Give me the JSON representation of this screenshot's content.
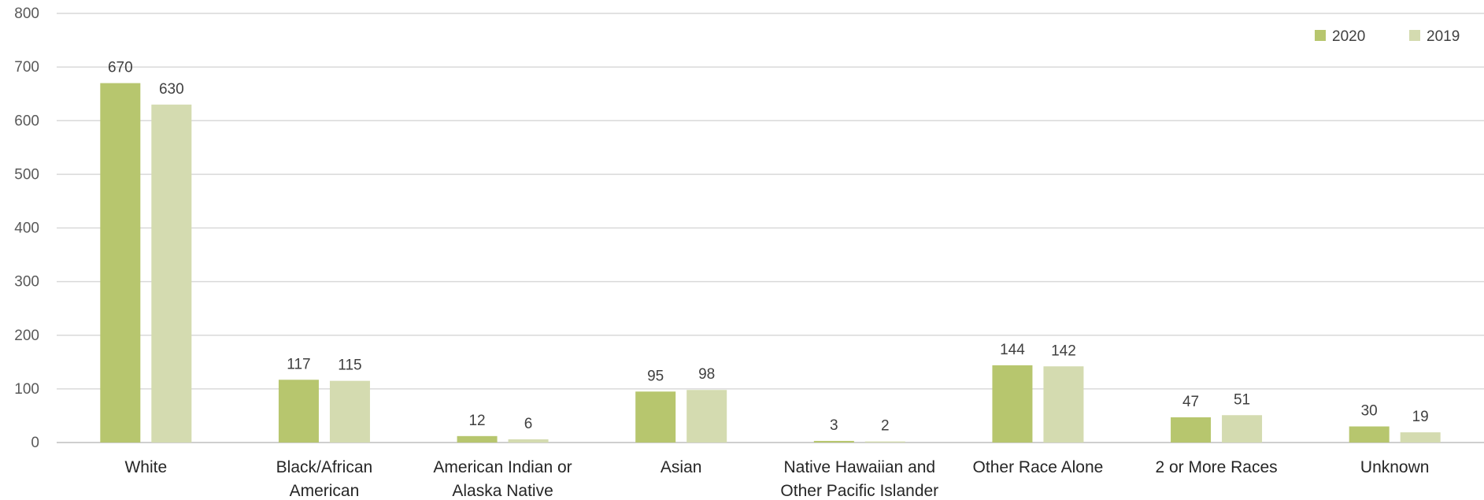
{
  "chart_data": {
    "type": "bar",
    "title": "",
    "xlabel": "",
    "ylabel": "",
    "categories": [
      [
        "White"
      ],
      [
        "Black/African",
        "American"
      ],
      [
        "American Indian or",
        "Alaska Native"
      ],
      [
        "Asian"
      ],
      [
        "Native Hawaiian and",
        "Other Pacific Islander"
      ],
      [
        "Other Race Alone"
      ],
      [
        "2 or More Races"
      ],
      [
        "Unknown"
      ]
    ],
    "series": [
      {
        "name": "2020",
        "color": "#b7c66e",
        "values": [
          670,
          117,
          12,
          95,
          3,
          144,
          47,
          30
        ]
      },
      {
        "name": "2019",
        "color": "#d4dbb0",
        "values": [
          630,
          115,
          6,
          98,
          2,
          142,
          51,
          19
        ]
      }
    ],
    "ylim": [
      0,
      800
    ],
    "yticks": [
      0,
      100,
      200,
      300,
      400,
      500,
      600,
      700,
      800
    ],
    "grid": true,
    "legend_position": "top-right"
  }
}
